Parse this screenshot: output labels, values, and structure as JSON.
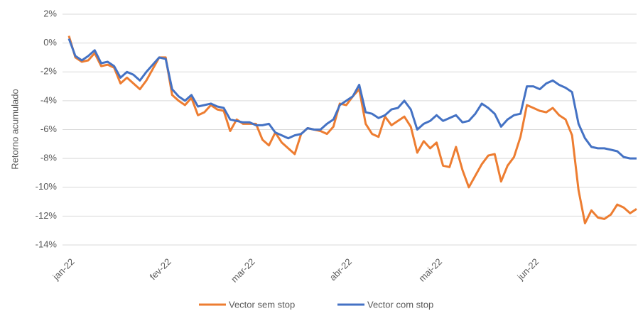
{
  "chart_data": {
    "type": "line",
    "y_label": "Retorno acumulado",
    "categories": [
      "jan-22",
      null,
      null,
      null,
      null,
      null,
      null,
      null,
      null,
      null,
      null,
      null,
      null,
      null,
      null,
      "fev-22",
      null,
      null,
      null,
      null,
      null,
      null,
      null,
      null,
      null,
      null,
      null,
      null,
      "mar-22",
      null,
      null,
      null,
      null,
      null,
      null,
      null,
      null,
      null,
      null,
      null,
      null,
      null,
      null,
      "abr-22",
      null,
      null,
      null,
      null,
      null,
      null,
      null,
      null,
      null,
      null,
      null,
      null,
      null,
      "mai-22",
      null,
      null,
      null,
      null,
      null,
      null,
      null,
      null,
      null,
      null,
      null,
      null,
      null,
      null,
      "jun-22",
      null,
      null,
      null,
      null,
      null,
      null,
      null,
      null,
      null,
      null,
      null,
      null,
      null,
      null,
      null,
      null
    ],
    "series": [
      {
        "name": "Vector sem stop",
        "color": "#ed7d31",
        "values": [
          0.5,
          -1.0,
          -1.3,
          -1.2,
          -0.7,
          -1.6,
          -1.5,
          -1.7,
          -2.8,
          -2.4,
          -2.8,
          -3.2,
          -2.6,
          -1.8,
          -1.0,
          -1.0,
          -3.6,
          -4.0,
          -4.3,
          -3.8,
          -5.0,
          -4.8,
          -4.3,
          -4.6,
          -4.7,
          -6.1,
          -5.3,
          -5.6,
          -5.6,
          -5.6,
          -6.7,
          -7.1,
          -6.2,
          -6.9,
          -7.3,
          -7.7,
          -6.3,
          -5.9,
          -6.0,
          -6.1,
          -6.3,
          -5.8,
          -4.2,
          -4.3,
          -3.7,
          -3.2,
          -5.6,
          -6.3,
          -6.5,
          -5.1,
          -5.7,
          -5.4,
          -5.1,
          -5.8,
          -7.6,
          -6.8,
          -7.3,
          -6.9,
          -8.5,
          -8.6,
          -7.2,
          -8.8,
          -10.0,
          -9.2,
          -8.4,
          -7.8,
          -7.7,
          -9.6,
          -8.5,
          -7.9,
          -6.5,
          -4.3,
          -4.5,
          -4.7,
          -4.8,
          -4.5,
          -5.0,
          -5.3,
          -6.4,
          -10.2,
          -12.5,
          -11.6,
          -12.1,
          -12.2,
          -11.9,
          -11.2,
          -11.4,
          -11.8,
          -11.5
        ]
      },
      {
        "name": "Vector com stop",
        "color": "#4472c4",
        "values": [
          0.3,
          -0.9,
          -1.2,
          -0.9,
          -0.5,
          -1.4,
          -1.3,
          -1.6,
          -2.4,
          -2.0,
          -2.2,
          -2.6,
          -2.0,
          -1.5,
          -1.0,
          -1.1,
          -3.2,
          -3.7,
          -4.0,
          -3.6,
          -4.4,
          -4.3,
          -4.2,
          -4.4,
          -4.5,
          -5.3,
          -5.4,
          -5.5,
          -5.5,
          -5.7,
          -5.7,
          -5.6,
          -6.2,
          -6.4,
          -6.6,
          -6.4,
          -6.3,
          -5.9,
          -6.0,
          -6.0,
          -5.6,
          -5.3,
          -4.3,
          -4.0,
          -3.7,
          -2.9,
          -4.8,
          -4.9,
          -5.2,
          -5.0,
          -4.6,
          -4.5,
          -4.0,
          -4.6,
          -6.0,
          -5.6,
          -5.4,
          -5.0,
          -5.4,
          -5.2,
          -5.0,
          -5.5,
          -5.4,
          -4.9,
          -4.2,
          -4.5,
          -4.9,
          -5.8,
          -5.3,
          -5.0,
          -4.9,
          -3.0,
          -3.0,
          -3.2,
          -2.8,
          -2.6,
          -2.9,
          -3.1,
          -3.4,
          -5.6,
          -6.6,
          -7.2,
          -7.3,
          -7.3,
          -7.4,
          -7.5,
          -7.9,
          -8.0,
          -8.0
        ]
      }
    ],
    "ylim": [
      -14,
      2
    ],
    "yticks": [
      {
        "value": 2,
        "label": "2%"
      },
      {
        "value": 0,
        "label": "0%"
      },
      {
        "value": -2,
        "label": "-2%"
      },
      {
        "value": -4,
        "label": "-4%"
      },
      {
        "value": -6,
        "label": "-6%"
      },
      {
        "value": -8,
        "label": "-8%"
      },
      {
        "value": -10,
        "label": "-10%"
      },
      {
        "value": -12,
        "label": "-12%"
      },
      {
        "value": -14,
        "label": "-14%"
      }
    ],
    "grid": true,
    "legend": "bottom"
  }
}
